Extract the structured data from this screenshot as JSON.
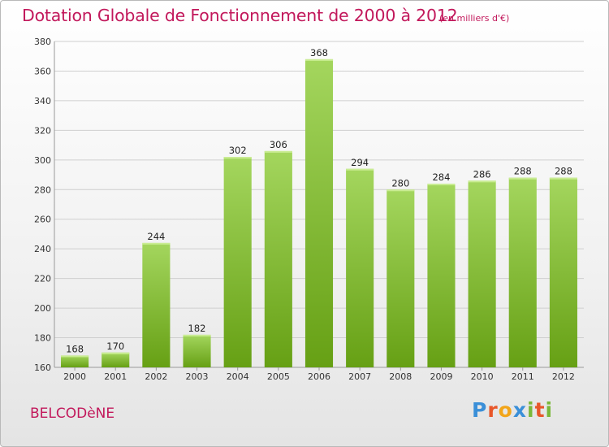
{
  "title": "Dotation Globale de Fonctionnement de 2000 à 2012",
  "subtitle": "(en milliers d'€)",
  "commune": "BELCODèNE",
  "logo": {
    "letters": [
      "P",
      "r",
      "o",
      "x",
      "i",
      "t",
      "i"
    ],
    "colors": [
      "#3a8fd8",
      "#e8572a",
      "#f2a51a",
      "#3a8fd8",
      "#7ab83a",
      "#e8572a",
      "#7ab83a"
    ]
  },
  "colors": {
    "bar_light": "#a4d65e",
    "bar_dark": "#66a014",
    "grid": "#cfcfcf",
    "accent": "#c2185b"
  },
  "chart_data": {
    "type": "bar",
    "title": "Dotation Globale de Fonctionnement de 2000 à 2012",
    "subtitle": "(en milliers d'€)",
    "categories": [
      "2000",
      "2001",
      "2002",
      "2003",
      "2004",
      "2005",
      "2006",
      "2007",
      "2008",
      "2009",
      "2010",
      "2011",
      "2012"
    ],
    "values": [
      168,
      170,
      244,
      182,
      302,
      306,
      368,
      294,
      280,
      284,
      286,
      288,
      288
    ],
    "ylim": [
      160,
      380
    ],
    "yticks": [
      160,
      180,
      200,
      220,
      240,
      260,
      280,
      300,
      320,
      340,
      360,
      380
    ],
    "grid": true
  }
}
